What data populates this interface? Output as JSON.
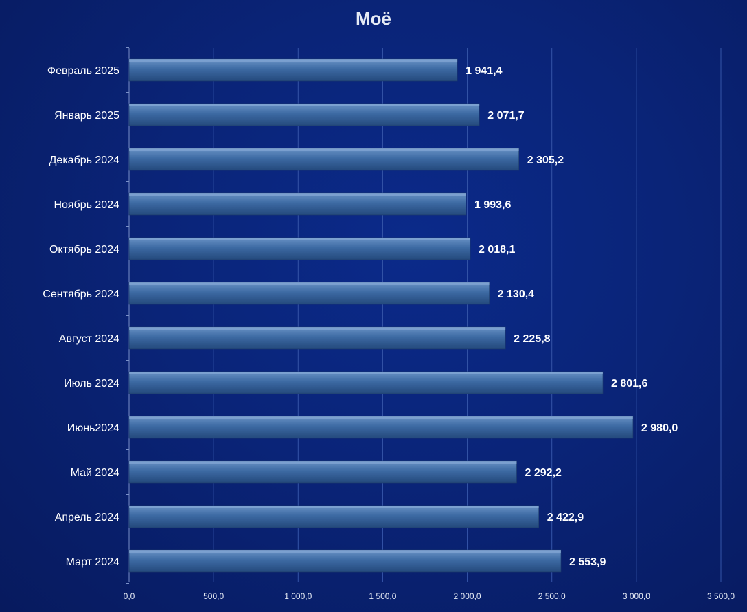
{
  "chart_data": {
    "type": "bar",
    "orientation": "horizontal",
    "title": "Моё",
    "categories": [
      "Февраль 2025",
      "Январь 2025",
      "Декабрь 2024",
      "Ноябрь 2024",
      "Октябрь 2024",
      "Сентябрь 2024",
      "Август 2024",
      "Июль 2024",
      "Июнь2024",
      "Май 2024",
      "Апрель 2024",
      "Март 2024"
    ],
    "values": [
      1941.4,
      2071.7,
      2305.2,
      1993.6,
      2018.1,
      2130.4,
      2225.8,
      2801.6,
      2980.0,
      2292.2,
      2422.9,
      2553.9
    ],
    "value_labels": [
      "1 941,4",
      "2 071,7",
      "2 305,2",
      "1 993,6",
      "2 018,1",
      "2 130,4",
      "2 225,8",
      "2 801,6",
      "2 980,0",
      "2 292,2",
      "2 422,9",
      "2 553,9"
    ],
    "xlim": [
      0,
      3500
    ],
    "x_ticks": [
      0,
      500,
      1000,
      1500,
      2000,
      2500,
      3000,
      3500
    ],
    "x_tick_labels": [
      "0,0",
      "500,0",
      "1 000,0",
      "1 500,0",
      "2 000,0",
      "2 500,0",
      "3 000,0",
      "3 500,0"
    ],
    "xlabel": "",
    "ylabel": "",
    "grid": "vertical",
    "legend": "none",
    "colors": {
      "background": "#0a2478",
      "bar_top": "#6a93c6",
      "bar_mid": "#3d6aa3",
      "bar_bottom": "#24497c",
      "grid": "#3555a8",
      "text": "#ffffff"
    }
  }
}
